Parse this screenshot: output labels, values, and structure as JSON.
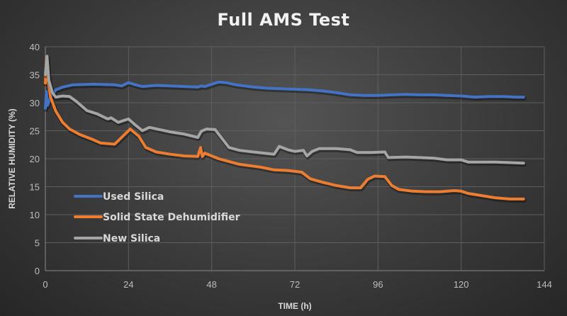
{
  "chart": {
    "title": "Full AMS Test",
    "xlabel": "TIME (h)",
    "ylabel": "RELATIVE HUMIDITY (%)"
  },
  "chart_data": {
    "type": "line",
    "title": "Full AMS Test",
    "xlabel": "TIME (h)",
    "ylabel": "RELATIVE HUMIDITY (%)",
    "xlim": [
      0,
      144
    ],
    "ylim": [
      0,
      40
    ],
    "x_ticks": [
      0,
      24,
      48,
      72,
      96,
      120,
      144
    ],
    "y_ticks": [
      0,
      5,
      10,
      15,
      20,
      25,
      30,
      35,
      40
    ],
    "grid": true,
    "legend_position": "inside-lower-left",
    "series": [
      {
        "name": "Used Silica",
        "color": "#4472c4",
        "x": [
          0,
          0.3,
          0.6,
          1.5,
          3,
          5,
          8,
          14,
          20,
          22,
          24,
          26,
          28,
          32,
          36,
          40,
          44,
          45,
          46,
          50,
          52,
          55,
          60,
          64,
          68,
          72,
          76,
          80,
          84,
          88,
          92,
          96,
          100,
          104,
          108,
          112,
          116,
          120,
          124,
          128,
          132,
          136,
          138
        ],
        "values": [
          29,
          32,
          29.5,
          31,
          32.3,
          32.8,
          33.2,
          33.3,
          33.2,
          33,
          33.6,
          33.2,
          32.9,
          33.1,
          33,
          32.9,
          32.8,
          33,
          32.9,
          33.7,
          33.6,
          33.2,
          32.8,
          32.6,
          32.5,
          32.4,
          32.3,
          32.1,
          31.8,
          31.4,
          31.3,
          31.3,
          31.4,
          31.5,
          31.4,
          31.4,
          31.3,
          31.2,
          31,
          31.1,
          31.1,
          31,
          31
        ]
      },
      {
        "name": "Solid State Dehumidifier",
        "color": "#ed7d31",
        "x": [
          0,
          0.3,
          0.8,
          1.5,
          3,
          5,
          7,
          10,
          13,
          16,
          20,
          22,
          24.5,
          27,
          29,
          32,
          36,
          40,
          44,
          44.8,
          45.3,
          46,
          50,
          56,
          62,
          66,
          70,
          74,
          76.5,
          80,
          84,
          88,
          91,
          93,
          95,
          98,
          100,
          102,
          106,
          110,
          114,
          118,
          120,
          122,
          126,
          130,
          134,
          138
        ],
        "values": [
          33.5,
          38,
          34,
          31,
          28.5,
          26.5,
          25.3,
          24.3,
          23.6,
          22.8,
          22.6,
          23.8,
          25.3,
          24,
          22,
          21.2,
          20.8,
          20.5,
          20.4,
          22,
          20.4,
          21,
          20,
          19,
          18.5,
          18,
          17.9,
          17.6,
          16.4,
          15.8,
          15.2,
          14.8,
          14.8,
          16.3,
          16.9,
          16.8,
          15.2,
          14.5,
          14.2,
          14.1,
          14.1,
          14.3,
          14.2,
          13.8,
          13.4,
          13,
          12.8,
          12.8
        ]
      },
      {
        "name": "New Silica",
        "color": "#a5a5a5",
        "x": [
          0,
          0.5,
          1,
          2,
          3,
          5,
          7,
          9,
          12,
          15,
          18,
          19,
          21,
          24,
          26,
          28,
          30,
          33,
          36,
          40,
          44,
          45,
          46.5,
          49,
          50.5,
          53,
          56,
          60,
          66,
          67.5,
          70,
          72,
          74.5,
          75.5,
          77,
          79,
          84,
          88,
          90,
          94,
          98,
          99,
          104,
          108,
          112,
          116,
          120,
          122,
          126,
          130,
          134,
          138
        ],
        "values": [
          35,
          38.3,
          34,
          31.8,
          31,
          31.2,
          31.1,
          30.2,
          28.6,
          28,
          27.1,
          27.3,
          26.5,
          27.1,
          26,
          25,
          25.6,
          25.2,
          24.8,
          24.4,
          23.8,
          24.9,
          25.3,
          25.2,
          24,
          22,
          21.5,
          21.2,
          20.8,
          22.2,
          21.6,
          21.3,
          21.5,
          20.5,
          21.3,
          21.8,
          21.8,
          21.6,
          21.1,
          21.1,
          21.2,
          20.2,
          20.3,
          20.2,
          20.1,
          19.8,
          19.8,
          19.4,
          19.4,
          19.4,
          19.3,
          19.2
        ]
      }
    ]
  }
}
